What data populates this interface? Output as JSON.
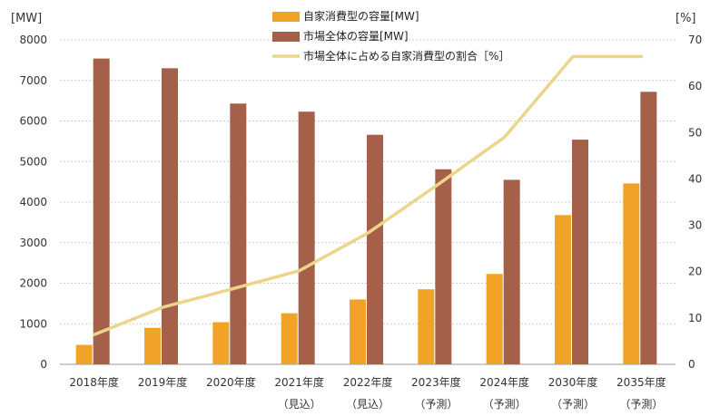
{
  "chart_data": {
    "type": "bar",
    "categories": [
      [
        "2018年度",
        ""
      ],
      [
        "2019年度",
        ""
      ],
      [
        "2020年度",
        ""
      ],
      [
        "2021年度",
        "（見込）"
      ],
      [
        "2022年度",
        "（見込）"
      ],
      [
        "2023年度",
        "（予測）"
      ],
      [
        "2024年度",
        "（予測）"
      ],
      [
        "2030年度",
        "（予測）"
      ],
      [
        "2035年度",
        "（予測）"
      ]
    ],
    "series": [
      {
        "name": "自家消費型の容量[MW]",
        "type": "bar",
        "axis": "left",
        "color": "#f0a327",
        "values": [
          480,
          900,
          1040,
          1260,
          1600,
          1850,
          2230,
          3680,
          4460
        ]
      },
      {
        "name": "市場全体の容量[MW]",
        "type": "bar",
        "axis": "left",
        "color": "#a5604a",
        "values": [
          7540,
          7300,
          6430,
          6230,
          5660,
          4810,
          4550,
          5540,
          6720
        ]
      },
      {
        "name": "市場全体に占める自家消費型の割合［%］",
        "type": "line",
        "axis": "right",
        "color": "#ecd58a",
        "values": [
          6.4,
          12.3,
          16.2,
          20.2,
          28.3,
          38.5,
          49.0,
          66.4,
          66.4
        ]
      }
    ],
    "left_axis": {
      "unit": "[MW]",
      "ylim": [
        0,
        8000
      ],
      "ticks": [
        0,
        1000,
        2000,
        3000,
        4000,
        5000,
        6000,
        7000,
        8000
      ]
    },
    "right_axis": {
      "unit": "[%]",
      "ylim": [
        0,
        70
      ],
      "ticks": [
        0,
        10,
        20,
        30,
        40,
        50,
        60,
        70
      ]
    },
    "grid": "horizontal dotted",
    "legend_position": "top-center"
  }
}
